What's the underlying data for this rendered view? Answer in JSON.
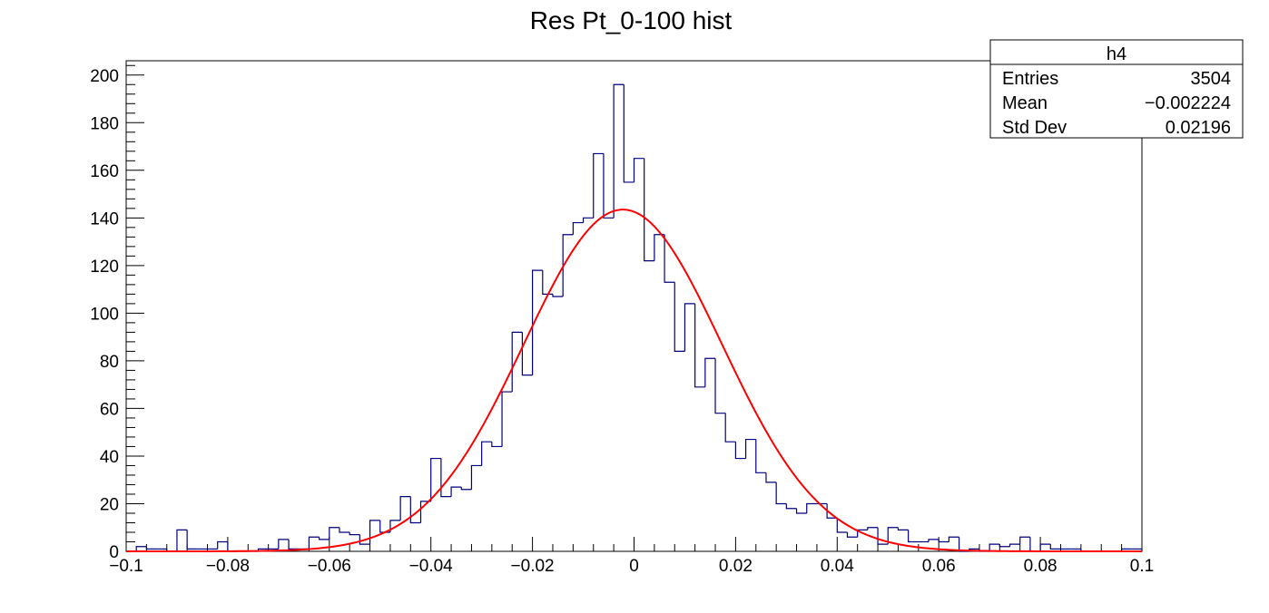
{
  "chart_data": {
    "type": "histogram",
    "title": "Res Pt_0-100 hist",
    "xlabel": "",
    "ylabel": "",
    "xlim": [
      -0.1,
      0.1
    ],
    "ylim": [
      0,
      206
    ],
    "x_ticks": [
      "−0.1",
      "−0.08",
      "−0.06",
      "−0.04",
      "−0.02",
      "0",
      "0.02",
      "0.04",
      "0.06",
      "0.08",
      "0.1"
    ],
    "x_tick_values": [
      -0.1,
      -0.08,
      -0.06,
      -0.04,
      -0.02,
      0,
      0.02,
      0.04,
      0.06,
      0.08,
      0.1
    ],
    "y_ticks": [
      "0",
      "20",
      "40",
      "60",
      "80",
      "100",
      "120",
      "140",
      "160",
      "180",
      "200"
    ],
    "y_tick_values": [
      0,
      20,
      40,
      60,
      80,
      100,
      120,
      140,
      160,
      180,
      200
    ],
    "bin_low_edges": [
      -0.1,
      -0.098,
      -0.096,
      -0.094,
      -0.092,
      -0.09,
      -0.088,
      -0.086,
      -0.084,
      -0.082,
      -0.08,
      -0.078,
      -0.076,
      -0.074,
      -0.072,
      -0.07,
      -0.068,
      -0.066,
      -0.064,
      -0.062,
      -0.06,
      -0.058,
      -0.056,
      -0.054,
      -0.052,
      -0.05,
      -0.048,
      -0.046,
      -0.044,
      -0.042,
      -0.04,
      -0.038,
      -0.036,
      -0.034,
      -0.032,
      -0.03,
      -0.028,
      -0.026,
      -0.024,
      -0.022,
      -0.02,
      -0.018,
      -0.016,
      -0.014,
      -0.012,
      -0.01,
      -0.008,
      -0.006,
      -0.004,
      -0.002,
      0,
      0.002,
      0.004,
      0.006,
      0.008,
      0.01,
      0.012,
      0.014,
      0.016,
      0.018,
      0.02,
      0.022,
      0.024,
      0.026,
      0.028,
      0.03,
      0.032,
      0.034,
      0.036,
      0.038,
      0.04,
      0.042,
      0.044,
      0.046,
      0.048,
      0.05,
      0.052,
      0.054,
      0.056,
      0.058,
      0.06,
      0.062,
      0.064,
      0.066,
      0.068,
      0.07,
      0.072,
      0.074,
      0.076,
      0.078,
      0.08,
      0.082,
      0.084,
      0.086,
      0.088,
      0.09,
      0.092,
      0.094,
      0.096,
      0.098
    ],
    "bin_width": 0.002,
    "counts": [
      0,
      2,
      1,
      1,
      0,
      9,
      1,
      1,
      1,
      4,
      0,
      0,
      0,
      1,
      1,
      5,
      1,
      1,
      6,
      5,
      10,
      8,
      7,
      3,
      13,
      8,
      13,
      23,
      12,
      21,
      39,
      23,
      27,
      26,
      36,
      46,
      44,
      67,
      92,
      74,
      118,
      108,
      107,
      133,
      138,
      140,
      167,
      140,
      196,
      155,
      165,
      122,
      133,
      113,
      84,
      104,
      69,
      81,
      58,
      46,
      39,
      47,
      33,
      29,
      20,
      18,
      16,
      20,
      20,
      14,
      8,
      6,
      9,
      10,
      3,
      10,
      9,
      4,
      4,
      5,
      4,
      6,
      0,
      1,
      0,
      3,
      2,
      3,
      6,
      0,
      3,
      1,
      1,
      1,
      0,
      0,
      0,
      0,
      1,
      1
    ],
    "fit": {
      "type": "gaussian",
      "amplitude": 143.5,
      "mean": -0.0022,
      "sigma": 0.0195
    },
    "stats": {
      "name": "h4",
      "rows": [
        {
          "label": "Entries",
          "value": "3504"
        },
        {
          "label": "Mean",
          "value": "−0.002224"
        },
        {
          "label": "Std Dev",
          "value": "0.02196"
        }
      ]
    },
    "colors": {
      "histogram": "#00007f",
      "fit": "#ff0000",
      "frame": "#000000"
    },
    "grid": false,
    "legend": "top-right"
  }
}
